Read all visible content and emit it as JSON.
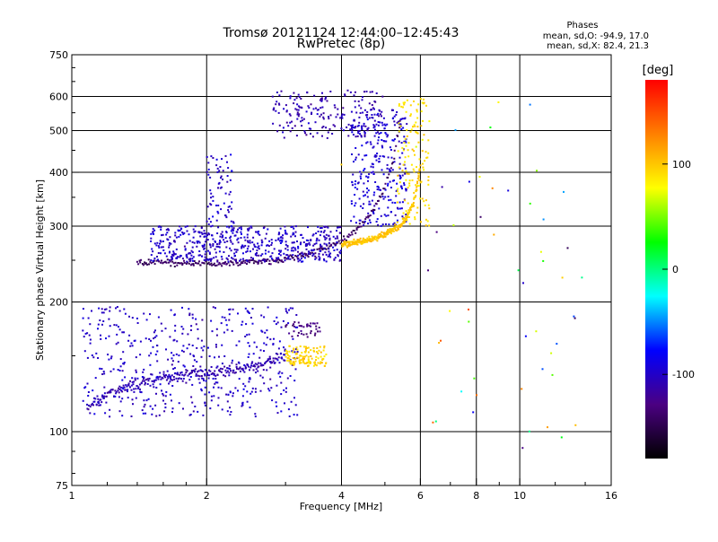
{
  "chart_data": {
    "type": "scatter",
    "title": "Tromsø 20121124 12:44:00–12:45:43",
    "subtitle": "RwPretec (8p)",
    "xlabel": "Frequency [MHz]",
    "ylabel": "Stationary phase Virtual Height [km]",
    "x_scale": "log",
    "y_scale": "log",
    "xlim": [
      1,
      16
    ],
    "ylim": [
      75,
      750
    ],
    "x_ticks": [
      1,
      2,
      4,
      6,
      8,
      10,
      16
    ],
    "y_ticks": [
      75,
      100,
      200,
      300,
      400,
      500,
      600,
      750
    ],
    "grid": true,
    "stats": {
      "heading": "Phases",
      "line_o": "mean, sd,O: -94.9, 17.0",
      "line_x": "mean, sd,X:  82.4, 21.3"
    },
    "colorbar": {
      "label": "[deg]",
      "ticks": [
        100,
        0,
        -100
      ],
      "range": [
        -180,
        180
      ],
      "stops": [
        "#000000",
        "#4b0082",
        "#0000ff",
        "#00ffff",
        "#00ff00",
        "#ffff00",
        "#ff8000",
        "#ff0000"
      ]
    },
    "traces": [
      {
        "kind": "band",
        "x": [
          1.08,
          1.15,
          1.2,
          1.3,
          1.4,
          1.5,
          1.6,
          1.7,
          1.8,
          1.9,
          2.0,
          2.1,
          2.2,
          2.3,
          2.4,
          2.5,
          2.6,
          2.7,
          2.8,
          2.9,
          3.0
        ],
        "y": [
          112,
          118,
          122,
          126,
          129,
          131,
          133,
          135,
          136,
          137,
          137,
          138,
          138,
          139,
          140,
          141,
          142,
          144,
          146,
          148,
          150
        ],
        "spread": 0.05,
        "phase": -110
      },
      {
        "kind": "cloud",
        "x": [
          1.05,
          3.2
        ],
        "y": [
          108,
          195
        ],
        "count": 500,
        "phase": -100
      },
      {
        "kind": "cloud",
        "x": [
          3.0,
          3.7
        ],
        "y": [
          142,
          158
        ],
        "count": 120,
        "phase": 95
      },
      {
        "kind": "cloud",
        "x": [
          3.0,
          3.6
        ],
        "y": [
          165,
          180
        ],
        "count": 40,
        "phase": -130
      },
      {
        "kind": "band",
        "x": [
          1.4,
          1.5,
          1.6,
          1.7,
          1.8,
          1.9,
          2.0,
          2.2,
          2.4,
          2.6,
          2.8,
          3.0,
          3.2,
          3.4,
          3.6,
          3.8,
          4.0,
          4.2,
          4.4,
          4.6,
          4.8,
          5.0,
          5.2,
          5.4
        ],
        "y": [
          248,
          248,
          247,
          246,
          246,
          246,
          246,
          246,
          247,
          248,
          250,
          252,
          255,
          259,
          264,
          270,
          278,
          288,
          300,
          316,
          338,
          370,
          420,
          520
        ],
        "spread": 0.03,
        "phase": -140
      },
      {
        "kind": "cloud",
        "x": [
          1.5,
          4.0
        ],
        "y": [
          248,
          300
        ],
        "count": 550,
        "phase": -100
      },
      {
        "kind": "cloud",
        "x": [
          2.0,
          2.3
        ],
        "y": [
          300,
          440
        ],
        "count": 70,
        "phase": -100
      },
      {
        "kind": "cloud",
        "x": [
          4.2,
          5.6
        ],
        "y": [
          300,
          560
        ],
        "count": 280,
        "phase": -95
      },
      {
        "kind": "band",
        "x": [
          4.0,
          4.4,
          4.8,
          5.1,
          5.4,
          5.6,
          5.8,
          5.9,
          6.0
        ],
        "y": [
          272,
          276,
          282,
          290,
          300,
          315,
          340,
          370,
          420
        ],
        "spread": 0.03,
        "phase": 100
      },
      {
        "kind": "cloud",
        "x": [
          5.3,
          6.3
        ],
        "y": [
          300,
          600
        ],
        "count": 130,
        "phase": 90
      },
      {
        "kind": "cloud",
        "x": [
          2.8,
          5.0
        ],
        "y": [
          480,
          620
        ],
        "count": 200,
        "phase": -110
      },
      {
        "kind": "cloud",
        "x": [
          6.2,
          14.0
        ],
        "y": [
          90,
          620
        ],
        "count": 50,
        "phase": 0,
        "random_phase": true
      }
    ]
  }
}
